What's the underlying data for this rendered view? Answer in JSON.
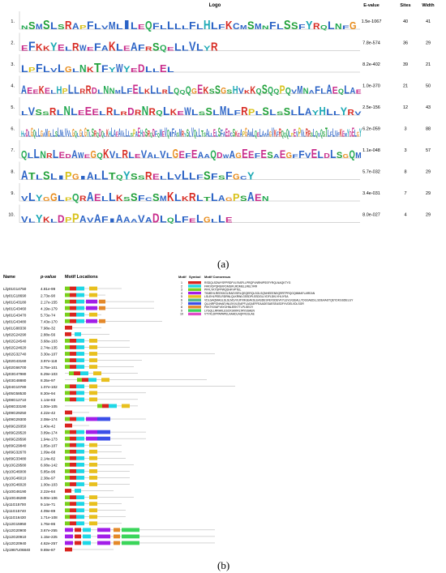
{
  "panel_a": {
    "label": "(a)",
    "headers": {
      "logo": "Logo",
      "evalue": "E-value",
      "sites": "Sites",
      "width": "Width"
    },
    "motifs": [
      {
        "num": "1.",
        "evalue": "1.5e-1067",
        "sites": "40",
        "width": "41",
        "logo": "NSMSLSRAPFLVMLILEQFLLLLFLHLFKCMSMNFLSSFYRQLNFG"
      },
      {
        "num": "2.",
        "evalue": "7.8e-574",
        "sites": "36",
        "width": "29",
        "logo": "EFKKYELRWEFAKLEAFRSQELLVLYR"
      },
      {
        "num": "3.",
        "evalue": "8.2e-402",
        "sites": "39",
        "width": "21",
        "logo": "LPFLVLGLNKTFYWYEDLLEL"
      },
      {
        "num": "4.",
        "evalue": "1.0e-370",
        "sites": "21",
        "width": "50",
        "logo": "AEEKELHPLLRRDLNNMLFELKLLRLQQQGEKSSGSHVKKQSQQPQVMNAFLAEQLAE"
      },
      {
        "num": "5.",
        "evalue": "2.5e-156",
        "sites": "12",
        "width": "43",
        "logo": "LVSSRLNLEEELRLRDRNRQLKEWLSSLMLFRPLSLSSLLAYHLLYRV"
      },
      {
        "num": "6.",
        "evalue": "6.2e-059",
        "sites": "3",
        "width": "88",
        "logo": "HVDLGQLLGAMGLLSLMLVVLGQLGLGTLSRQDQLKHLAEAVLLLSPAEHDSRQDFQMEVQIFASMRYSLVQLLTSALLELSFAEDCSKEAPGAMLQELAAAGVKFRQQQLPEVPVLRRSLQVQSTLFLVFKEMYDELGY"
      },
      {
        "num": "7.",
        "evalue": "1.1e-048",
        "sites": "3",
        "width": "57",
        "logo": "QLLNRLEDAWEGQKVLRLEVALVLGEFEAAQDWAGEEFESAEGFFVELDLSGQM"
      },
      {
        "num": "8.",
        "evalue": "5.7e-032",
        "sites": "8",
        "width": "29",
        "logo": "ATLSLIPGIALLTQYSSRELLVLLFSFSFGCY"
      },
      {
        "num": "9.",
        "evalue": "3.4e-031",
        "sites": "7",
        "width": "29",
        "logo": "VLYGGLPQRAELLKSSFCSMKLKRLTLAGPSAEN"
      },
      {
        "num": "10.",
        "evalue": "8.0e-027",
        "sites": "4",
        "width": "29",
        "logo": "VLYKLDPPAVAFIAAAVADLQLFELGLLE"
      }
    ]
  },
  "panel_b": {
    "label": "(b)",
    "headers": {
      "name": "Name",
      "pvalue": "p-value",
      "locations": "Motif Locations"
    },
    "legend": {
      "headers": {
        "motif": "Motif",
        "symbol": "Symbol",
        "consensus": "Motif Consensus"
      },
      "items": [
        {
          "n": "1",
          "color": "#d9241e",
          "consensus": "RSDQLSDWYSFPRDFVLFASFLLPRQFVNRNIPSSFYRQLNAQKTYG"
        },
        {
          "n": "2",
          "color": "#1fd7e6",
          "consensus": "FRKVDPQREKFDMSIFLRDMELLRELYRR"
        },
        {
          "n": "3",
          "color": "#78d11c",
          "consensus": "PFFLYKTGPPWQDHFVPTEL"
        },
        {
          "n": "4",
          "color": "#a21ee8",
          "consensus": "TKMEHLREEKKGLRAEVSRLQEQERQLSGLSQNHEEENSQRRTPRQGQMMAFLAREAN"
        },
        {
          "n": "5",
          "color": "#e8c01e",
          "consensus": "LSLEHLPEELRDRNLQLKRWLGSSDPLSSDGLLYDFLDKLYHLIYSA"
        },
        {
          "n": "6",
          "color": "#4ab88a",
          "consensus": "VDLGAQMAGLSLSLMLVVLRYMGEAKSLEASDESFEVSDEVKYLEVLKEEALLYDGSAEDLLSDEAASTQEYDKGSDELGY"
        },
        {
          "n": "7",
          "color": "#3b4fe8",
          "consensus": "QLLNRPGNHAEVNLEKVLEIAPFLAGAEFFEAADESAESEASDFVVDELVDLSGR"
        },
        {
          "n": "8",
          "color": "#e4892a",
          "consensus": "FKKTKIVAFYAYGHNLEEKTTLPLSEGY"
        },
        {
          "n": "9",
          "color": "#3ad55a",
          "consensus": "LYGQLLRRAKLESCKSKKRLTAYSSAEN"
        },
        {
          "n": "10",
          "color": "#e24cc8",
          "consensus": "VTYKLDPPAPAPELAAADLAQFFEGLAE"
        }
      ]
    },
    "genes": [
      {
        "name": "Lily01G14750",
        "pvalue": "4.81e-99"
      },
      {
        "name": "Lily01G18690",
        "pvalue": "2.73e-90"
      },
      {
        "name": "Lily01G43180",
        "pvalue": "2.17e-155"
      },
      {
        "name": "Lily01G43460",
        "pvalue": "4.19e-179"
      },
      {
        "name": "Lily01G43470",
        "pvalue": "5.73e-74"
      },
      {
        "name": "Lily01G43480",
        "pvalue": "7.43e-170"
      },
      {
        "name": "Lily01G88330",
        "pvalue": "7.98e-32"
      },
      {
        "name": "Lily02G24290",
        "pvalue": "2.88e-56"
      },
      {
        "name": "Lily02G24540",
        "pvalue": "3.68e-103"
      },
      {
        "name": "Lily02G24620",
        "pvalue": "2.74e-135"
      },
      {
        "name": "Lily02G32740",
        "pvalue": "3.30e-107"
      },
      {
        "name": "Lily02G43160",
        "pvalue": "3.97e-118"
      },
      {
        "name": "Lily02G66700",
        "pvalue": "3.75e-101"
      },
      {
        "name": "Lily03G47980",
        "pvalue": "6.29e-103"
      },
      {
        "name": "Lily03G48880",
        "pvalue": "8.35e-97"
      },
      {
        "name": "Lily04G10780",
        "pvalue": "1.07e-102"
      },
      {
        "name": "Lily05G58530",
        "pvalue": "8.30e-94"
      },
      {
        "name": "Lily08G12710",
        "pvalue": "1.14e-83"
      },
      {
        "name": "Lily08G33190",
        "pvalue": "1.00e-105"
      },
      {
        "name": "Lily09G29250",
        "pvalue": "4.22e-42"
      },
      {
        "name": "Lily09G29300",
        "pvalue": "2.08e-174"
      },
      {
        "name": "Lily09G29350",
        "pvalue": "1.40e-42"
      },
      {
        "name": "Lily09G29520",
        "pvalue": "3.89e-174"
      },
      {
        "name": "Lily09G29590",
        "pvalue": "1.94e-173"
      },
      {
        "name": "Lily09G29840",
        "pvalue": "1.85e-107"
      },
      {
        "name": "Lily09G32670",
        "pvalue": "1.09e-68"
      },
      {
        "name": "Lily09G33480",
        "pvalue": "2.14e-82"
      },
      {
        "name": "Lily10G29580",
        "pvalue": "6.08e-142"
      },
      {
        "name": "Lily10G46000",
        "pvalue": "5.85e-96"
      },
      {
        "name": "Lily10G46010",
        "pvalue": "2.38e-97"
      },
      {
        "name": "Lily10G46020",
        "pvalue": "1.00e-103"
      },
      {
        "name": "Lily10G46190",
        "pvalue": "2.22e-84"
      },
      {
        "name": "Lily10G46280",
        "pvalue": "5.00e-106"
      },
      {
        "name": "Lily11G15700",
        "pvalue": "9.14e-71"
      },
      {
        "name": "Lily11G15740",
        "pvalue": "4.09e-89"
      },
      {
        "name": "Lily11G16430",
        "pvalue": "1.71e-108"
      },
      {
        "name": "Lily12G15950",
        "pvalue": "1.76e-86"
      },
      {
        "name": "Lily12G20900",
        "pvalue": "3.67e-255"
      },
      {
        "name": "Lily12G20910",
        "pvalue": "1.15e-225"
      },
      {
        "name": "Lily12G20940",
        "pvalue": "4.62e-257"
      },
      {
        "name": "Lily1967U06840",
        "pvalue": "9.69e-87"
      }
    ]
  }
}
